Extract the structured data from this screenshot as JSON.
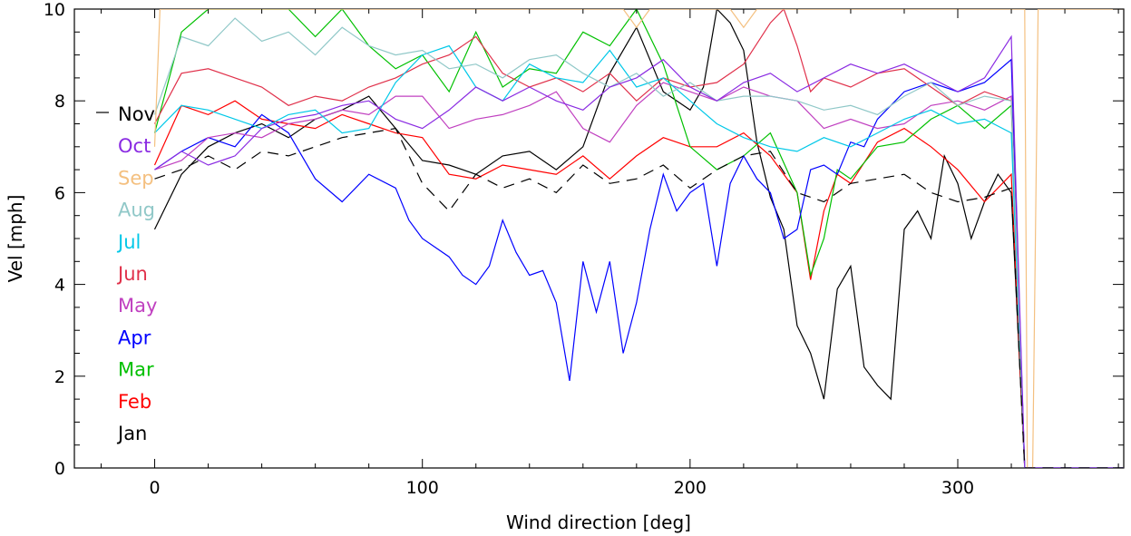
{
  "chart_data": {
    "type": "line",
    "title": "",
    "xlabel": "Wind direction [deg]",
    "ylabel": "Vel [mph]",
    "xlim": [
      -30,
      362
    ],
    "ylim": [
      0,
      10
    ],
    "xticks": [
      0,
      100,
      200,
      300
    ],
    "yticks": [
      0,
      2,
      4,
      6,
      8,
      10
    ],
    "grid": false,
    "legend_position": "left, inside plot",
    "legend_order": [
      "Nov",
      "Oct",
      "Sep",
      "Aug",
      "Jul",
      "Jun",
      "May",
      "Apr",
      "Mar",
      "Feb",
      "Jan"
    ],
    "series": [
      {
        "name": "Jan",
        "color": "#000000",
        "dash": "",
        "x": [
          0,
          10,
          20,
          30,
          40,
          50,
          60,
          70,
          80,
          90,
          100,
          110,
          120,
          130,
          140,
          150,
          160,
          170,
          180,
          190,
          200,
          205,
          210,
          215,
          220,
          225,
          230,
          235,
          240,
          245,
          250,
          255,
          260,
          265,
          270,
          275,
          280,
          285,
          290,
          295,
          300,
          305,
          310,
          315,
          320,
          325,
          330,
          340,
          350,
          362
        ],
        "y": [
          5.2,
          6.4,
          7.0,
          7.3,
          7.5,
          7.2,
          7.6,
          7.8,
          8.1,
          7.4,
          6.7,
          6.6,
          6.4,
          6.8,
          6.9,
          6.5,
          7.0,
          8.6,
          9.6,
          8.2,
          7.8,
          8.3,
          10.0,
          9.7,
          9.1,
          7.1,
          5.9,
          5.2,
          3.1,
          2.5,
          1.5,
          3.9,
          4.4,
          2.2,
          1.8,
          1.5,
          5.2,
          5.6,
          5.0,
          6.8,
          6.2,
          5.0,
          5.8,
          6.4,
          6.0,
          0.0,
          0.0,
          0.0,
          0.0,
          0.0
        ]
      },
      {
        "name": "Feb",
        "color": "#ff0000",
        "dash": "",
        "x": [
          0,
          10,
          20,
          30,
          40,
          50,
          60,
          70,
          80,
          90,
          100,
          110,
          120,
          130,
          140,
          150,
          160,
          170,
          180,
          190,
          200,
          210,
          220,
          230,
          240,
          245,
          250,
          255,
          260,
          270,
          280,
          290,
          300,
          310,
          320,
          325,
          330,
          340,
          350,
          362
        ],
        "y": [
          6.6,
          7.9,
          7.7,
          8.0,
          7.6,
          7.5,
          7.4,
          7.7,
          7.5,
          7.3,
          7.2,
          6.4,
          6.3,
          6.6,
          6.5,
          6.4,
          6.8,
          6.3,
          6.8,
          7.2,
          7.0,
          7.0,
          7.3,
          6.8,
          6.0,
          4.1,
          5.6,
          6.4,
          6.2,
          7.1,
          7.4,
          7.0,
          6.5,
          5.8,
          6.4,
          0.0,
          0.0,
          0.0,
          0.0,
          0.0
        ]
      },
      {
        "name": "Mar",
        "color": "#00c000",
        "dash": "",
        "x": [
          0,
          10,
          20,
          30,
          40,
          50,
          60,
          70,
          80,
          90,
          100,
          110,
          120,
          130,
          140,
          150,
          160,
          170,
          180,
          190,
          200,
          210,
          220,
          230,
          240,
          245,
          250,
          255,
          260,
          270,
          280,
          290,
          300,
          310,
          320,
          325,
          330,
          340,
          350,
          362
        ],
        "y": [
          7.3,
          9.5,
          10.0,
          10.0,
          10.0,
          10.0,
          9.4,
          10.0,
          9.2,
          8.7,
          9.0,
          8.2,
          9.5,
          8.3,
          8.7,
          8.6,
          9.5,
          9.2,
          10.0,
          8.8,
          7.0,
          6.5,
          6.8,
          7.3,
          6.0,
          4.2,
          5.0,
          6.5,
          6.3,
          7.0,
          7.1,
          7.6,
          7.9,
          7.4,
          7.9,
          0.0,
          0.0,
          0.0,
          0.0,
          0.0
        ]
      },
      {
        "name": "Apr",
        "color": "#0000ff",
        "dash": "",
        "x": [
          0,
          10,
          20,
          30,
          40,
          50,
          60,
          70,
          80,
          90,
          95,
          100,
          110,
          115,
          120,
          125,
          130,
          135,
          140,
          145,
          150,
          155,
          160,
          165,
          170,
          175,
          180,
          185,
          190,
          195,
          200,
          205,
          210,
          215,
          220,
          225,
          230,
          235,
          240,
          245,
          250,
          255,
          260,
          265,
          270,
          275,
          280,
          290,
          300,
          310,
          320,
          325,
          330,
          340,
          350,
          362
        ],
        "y": [
          6.5,
          6.9,
          7.2,
          7.0,
          7.7,
          7.3,
          6.3,
          5.8,
          6.4,
          6.1,
          5.4,
          5.0,
          4.6,
          4.2,
          4.0,
          4.4,
          5.4,
          4.7,
          4.2,
          4.3,
          3.6,
          1.9,
          4.5,
          3.4,
          4.5,
          2.5,
          3.6,
          5.2,
          6.4,
          5.6,
          6.0,
          6.2,
          4.4,
          6.2,
          6.8,
          6.3,
          6.0,
          5.0,
          5.2,
          6.5,
          6.6,
          6.4,
          7.1,
          7.0,
          7.6,
          7.9,
          8.2,
          8.4,
          8.2,
          8.4,
          8.9,
          0.0,
          0.0,
          0.0,
          0.0,
          0.0
        ]
      },
      {
        "name": "May",
        "color": "#c040c0",
        "dash": "",
        "x": [
          0,
          10,
          20,
          30,
          40,
          50,
          60,
          70,
          80,
          90,
          100,
          110,
          120,
          130,
          140,
          150,
          160,
          170,
          180,
          190,
          200,
          210,
          220,
          230,
          240,
          250,
          260,
          270,
          280,
          290,
          300,
          310,
          320,
          325,
          330,
          340,
          350,
          362
        ],
        "y": [
          6.5,
          6.7,
          7.2,
          7.3,
          7.2,
          7.5,
          7.6,
          7.8,
          7.7,
          8.1,
          8.1,
          7.4,
          7.6,
          7.7,
          7.9,
          8.2,
          7.4,
          7.1,
          7.9,
          8.4,
          8.2,
          8.0,
          8.3,
          8.1,
          8.0,
          7.4,
          7.6,
          7.4,
          7.5,
          7.9,
          8.0,
          7.8,
          8.1,
          0.0,
          0.0,
          0.0,
          0.0,
          0.0
        ]
      },
      {
        "name": "Jun",
        "color": "#e0304a",
        "dash": "",
        "x": [
          0,
          10,
          20,
          30,
          40,
          50,
          60,
          70,
          80,
          90,
          100,
          110,
          120,
          130,
          140,
          150,
          160,
          170,
          180,
          190,
          200,
          210,
          220,
          230,
          235,
          240,
          245,
          250,
          260,
          270,
          280,
          290,
          300,
          310,
          320,
          325,
          330,
          340,
          350,
          362
        ],
        "y": [
          7.5,
          8.6,
          8.7,
          8.5,
          8.3,
          7.9,
          8.1,
          8.0,
          8.3,
          8.5,
          8.8,
          9.0,
          9.4,
          8.6,
          8.3,
          8.5,
          8.2,
          8.6,
          8.0,
          8.5,
          8.3,
          8.4,
          8.8,
          9.7,
          10.0,
          9.2,
          8.2,
          8.5,
          8.3,
          8.6,
          8.7,
          8.3,
          7.9,
          8.2,
          8.0,
          0.0,
          0.0,
          0.0,
          0.0,
          0.0
        ]
      },
      {
        "name": "Jul",
        "color": "#00c8e8",
        "dash": "",
        "x": [
          0,
          10,
          20,
          30,
          40,
          50,
          60,
          70,
          80,
          90,
          100,
          110,
          120,
          130,
          140,
          150,
          160,
          170,
          180,
          190,
          200,
          210,
          220,
          230,
          240,
          250,
          260,
          270,
          280,
          290,
          300,
          310,
          320,
          325,
          330,
          340,
          350,
          362
        ],
        "y": [
          7.3,
          7.9,
          7.8,
          7.6,
          7.4,
          7.7,
          7.8,
          7.3,
          7.4,
          8.4,
          9.0,
          9.2,
          8.3,
          8.0,
          8.8,
          8.5,
          8.4,
          9.1,
          8.3,
          8.5,
          8.0,
          7.5,
          7.2,
          7.0,
          6.9,
          7.2,
          7.0,
          7.3,
          7.6,
          7.8,
          7.5,
          7.6,
          7.3,
          0.0,
          0.0,
          0.0,
          0.0,
          0.0
        ]
      },
      {
        "name": "Aug",
        "color": "#90c8c8",
        "dash": "",
        "x": [
          0,
          10,
          20,
          30,
          40,
          50,
          60,
          70,
          80,
          90,
          100,
          110,
          120,
          130,
          140,
          150,
          160,
          170,
          180,
          190,
          200,
          210,
          220,
          230,
          240,
          250,
          260,
          270,
          280,
          290,
          300,
          310,
          320,
          325,
          330,
          340,
          350,
          362
        ],
        "y": [
          7.7,
          9.4,
          9.2,
          9.8,
          9.3,
          9.5,
          9.0,
          9.6,
          9.2,
          9.0,
          9.1,
          8.7,
          8.8,
          8.5,
          8.9,
          9.0,
          8.6,
          8.3,
          8.6,
          8.1,
          8.4,
          8.0,
          8.1,
          8.1,
          8.0,
          7.8,
          7.9,
          7.7,
          8.1,
          8.4,
          7.9,
          8.1,
          8.0,
          0.0,
          0.0,
          0.0,
          0.0,
          0.0
        ]
      },
      {
        "name": "Sep",
        "color": "#f4c080",
        "dash": "",
        "x": [
          0,
          2,
          4,
          6,
          10,
          20,
          40,
          60,
          80,
          100,
          120,
          140,
          160,
          175,
          180,
          185,
          190,
          200,
          210,
          215,
          220,
          225,
          230,
          240,
          250,
          260,
          270,
          280,
          290,
          300,
          310,
          320,
          325,
          326,
          328,
          330,
          340,
          350,
          362
        ],
        "y": [
          7.0,
          10.0,
          10.0,
          10.0,
          10.0,
          10.0,
          10.0,
          10.0,
          10.0,
          10.0,
          10.0,
          10.0,
          10.0,
          10.0,
          9.6,
          10.0,
          10.0,
          10.0,
          10.0,
          10.0,
          9.6,
          10.0,
          10.0,
          10.0,
          10.0,
          10.0,
          10.0,
          10.0,
          10.0,
          10.0,
          10.0,
          10.0,
          10.0,
          0.0,
          0.0,
          10.0,
          10.0,
          10.0,
          10.0
        ]
      },
      {
        "name": "Oct",
        "color": "#8a2be2",
        "dash": "",
        "x": [
          0,
          10,
          20,
          30,
          40,
          50,
          60,
          70,
          80,
          90,
          100,
          110,
          120,
          130,
          140,
          150,
          160,
          170,
          180,
          190,
          200,
          210,
          220,
          230,
          240,
          250,
          260,
          270,
          280,
          290,
          300,
          310,
          320,
          325,
          330,
          340,
          350,
          362
        ],
        "y": [
          6.5,
          6.9,
          6.6,
          6.8,
          7.4,
          7.6,
          7.7,
          7.9,
          8.0,
          7.6,
          7.4,
          7.8,
          8.3,
          8.0,
          8.3,
          8.0,
          7.8,
          8.3,
          8.5,
          8.9,
          8.3,
          8.0,
          8.4,
          8.6,
          8.2,
          8.5,
          8.8,
          8.6,
          8.8,
          8.5,
          8.2,
          8.5,
          9.4,
          0.0,
          0.0,
          0.0,
          0.0,
          0.0
        ]
      },
      {
        "name": "Nov",
        "color": "#000000",
        "dash": "12,8",
        "x": [
          0,
          10,
          20,
          30,
          40,
          50,
          60,
          70,
          80,
          90,
          100,
          110,
          120,
          130,
          140,
          150,
          160,
          170,
          180,
          190,
          200,
          210,
          220,
          230,
          240,
          250,
          260,
          270,
          280,
          290,
          300,
          310,
          320,
          325,
          330,
          340,
          350,
          362
        ],
        "y": [
          6.3,
          6.5,
          6.8,
          6.5,
          6.9,
          6.8,
          7.0,
          7.2,
          7.3,
          7.4,
          6.2,
          5.6,
          6.4,
          6.1,
          6.3,
          6.0,
          6.6,
          6.2,
          6.3,
          6.6,
          6.1,
          6.5,
          6.8,
          6.9,
          6.0,
          5.8,
          6.2,
          6.3,
          6.4,
          6.0,
          5.8,
          5.9,
          6.1,
          0.0,
          0.0,
          0.0,
          0.0,
          0.0
        ]
      }
    ]
  }
}
